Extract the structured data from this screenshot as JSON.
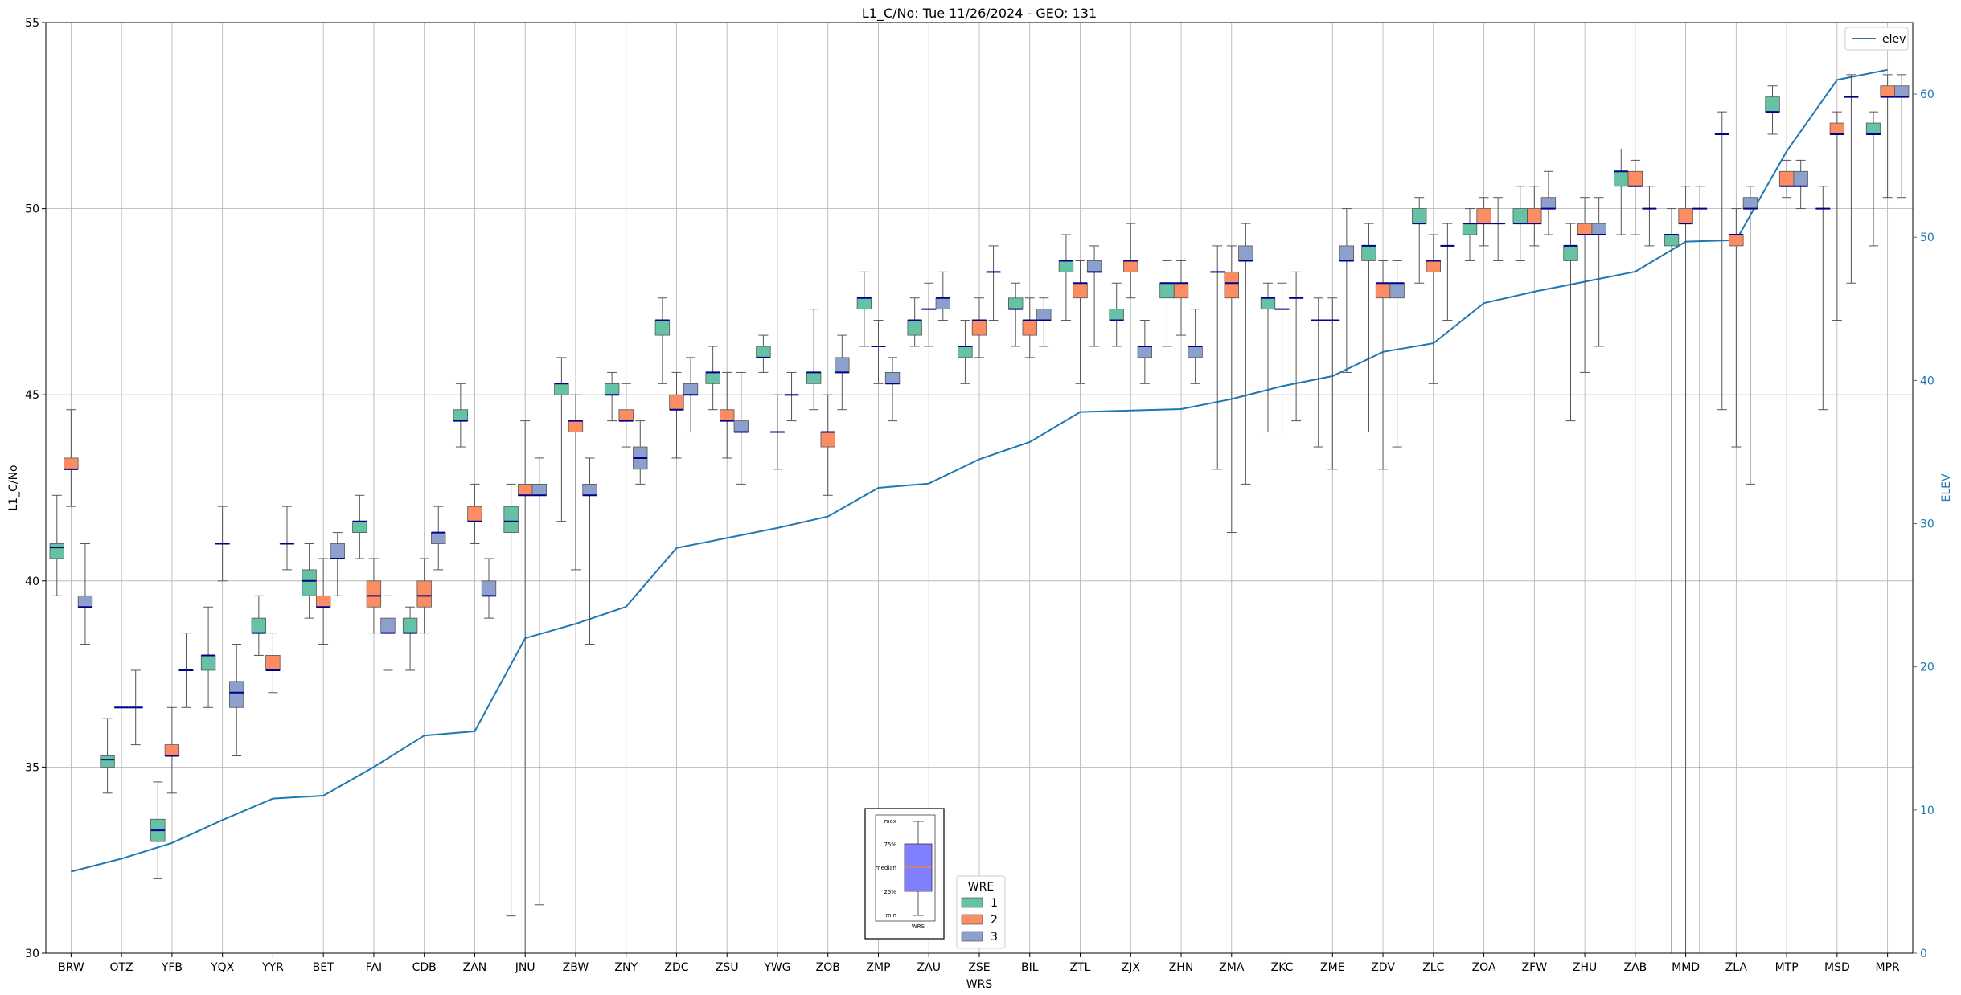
{
  "chart_data": {
    "type": "box",
    "title": "L1_C/No: Tue 11/26/2024 - GEO: 131",
    "xlabel": "WRS",
    "ylabel": "L1_C/No",
    "y2label": "ELEV",
    "ylim": [
      30,
      55
    ],
    "y2lim": [
      0,
      65
    ],
    "yticks": [
      30,
      35,
      40,
      45,
      50,
      55
    ],
    "y2ticks": [
      0,
      10,
      20,
      30,
      40,
      50,
      60
    ],
    "grid": true,
    "categories": [
      "BRW",
      "OTZ",
      "YFB",
      "YQX",
      "YYR",
      "BET",
      "FAI",
      "CDB",
      "ZAN",
      "JNU",
      "ZBW",
      "ZNY",
      "ZDC",
      "ZSU",
      "YWG",
      "ZOB",
      "ZMP",
      "ZAU",
      "ZSE",
      "BIL",
      "ZTL",
      "ZJX",
      "ZHN",
      "ZMA",
      "ZKC",
      "ZME",
      "ZDV",
      "ZLC",
      "ZOA",
      "ZFW",
      "ZHU",
      "ZAB",
      "MMD",
      "ZLA",
      "MTP",
      "MSD",
      "MPR"
    ],
    "wre_colors": {
      "1": "#66c2a5",
      "2": "#fc8d62",
      "3": "#8da0cb"
    },
    "median_color": "#00008b",
    "whisker_color": "#555555",
    "boxes": [
      {
        "x": "BRW",
        "wre": 1,
        "min": 39.6,
        "q1": 40.6,
        "median": 40.9,
        "q3": 41.0,
        "max": 42.3
      },
      {
        "x": "BRW",
        "wre": 2,
        "min": 42.0,
        "q1": 43.0,
        "median": 43.0,
        "q3": 43.3,
        "max": 44.6
      },
      {
        "x": "BRW",
        "wre": 3,
        "min": 38.3,
        "q1": 39.3,
        "median": 39.3,
        "q3": 39.6,
        "max": 41.0
      },
      {
        "x": "OTZ",
        "wre": 1,
        "min": 34.3,
        "q1": 35.0,
        "median": 35.2,
        "q3": 35.3,
        "max": 36.3
      },
      {
        "x": "OTZ",
        "wre": 2,
        "min": 36.6,
        "q1": 36.6,
        "median": 36.6,
        "q3": 36.6,
        "max": 36.6
      },
      {
        "x": "OTZ",
        "wre": 3,
        "min": 35.6,
        "q1": 36.6,
        "median": 36.6,
        "q3": 36.6,
        "max": 37.6
      },
      {
        "x": "YFB",
        "wre": 1,
        "min": 32.0,
        "q1": 33.0,
        "median": 33.3,
        "q3": 33.6,
        "max": 34.6
      },
      {
        "x": "YFB",
        "wre": 2,
        "min": 34.3,
        "q1": 35.3,
        "median": 35.3,
        "q3": 35.6,
        "max": 36.6
      },
      {
        "x": "YFB",
        "wre": 3,
        "min": 36.6,
        "q1": 37.6,
        "median": 37.6,
        "q3": 37.6,
        "max": 38.6
      },
      {
        "x": "YQX",
        "wre": 1,
        "min": 36.6,
        "q1": 37.6,
        "median": 38.0,
        "q3": 38.0,
        "max": 39.3
      },
      {
        "x": "YQX",
        "wre": 2,
        "min": 40.0,
        "q1": 41.0,
        "median": 41.0,
        "q3": 41.0,
        "max": 42.0
      },
      {
        "x": "YQX",
        "wre": 3,
        "min": 35.3,
        "q1": 36.6,
        "median": 37.0,
        "q3": 37.3,
        "max": 38.3
      },
      {
        "x": "YYR",
        "wre": 1,
        "min": 38.0,
        "q1": 38.6,
        "median": 38.6,
        "q3": 39.0,
        "max": 39.6
      },
      {
        "x": "YYR",
        "wre": 2,
        "min": 37.0,
        "q1": 37.6,
        "median": 37.6,
        "q3": 38.0,
        "max": 38.6
      },
      {
        "x": "YYR",
        "wre": 3,
        "min": 40.3,
        "q1": 41.0,
        "median": 41.0,
        "q3": 41.0,
        "max": 42.0
      },
      {
        "x": "BET",
        "wre": 1,
        "min": 39.0,
        "q1": 39.6,
        "median": 40.0,
        "q3": 40.3,
        "max": 41.0
      },
      {
        "x": "BET",
        "wre": 2,
        "min": 38.3,
        "q1": 39.3,
        "median": 39.3,
        "q3": 39.6,
        "max": 40.6
      },
      {
        "x": "BET",
        "wre": 3,
        "min": 39.6,
        "q1": 40.6,
        "median": 40.6,
        "q3": 41.0,
        "max": 41.3
      },
      {
        "x": "FAI",
        "wre": 1,
        "min": 40.6,
        "q1": 41.3,
        "median": 41.6,
        "q3": 41.6,
        "max": 42.3
      },
      {
        "x": "FAI",
        "wre": 2,
        "min": 38.6,
        "q1": 39.3,
        "median": 39.6,
        "q3": 40.0,
        "max": 40.6
      },
      {
        "x": "FAI",
        "wre": 3,
        "min": 37.6,
        "q1": 38.6,
        "median": 38.6,
        "q3": 39.0,
        "max": 39.6
      },
      {
        "x": "CDB",
        "wre": 1,
        "min": 37.6,
        "q1": 38.6,
        "median": 38.6,
        "q3": 39.0,
        "max": 39.3
      },
      {
        "x": "CDB",
        "wre": 2,
        "min": 38.6,
        "q1": 39.3,
        "median": 39.6,
        "q3": 40.0,
        "max": 40.6
      },
      {
        "x": "CDB",
        "wre": 3,
        "min": 40.3,
        "q1": 41.0,
        "median": 41.3,
        "q3": 41.3,
        "max": 42.0
      },
      {
        "x": "ZAN",
        "wre": 1,
        "min": 43.6,
        "q1": 44.3,
        "median": 44.3,
        "q3": 44.6,
        "max": 45.3
      },
      {
        "x": "ZAN",
        "wre": 2,
        "min": 41.0,
        "q1": 41.6,
        "median": 41.6,
        "q3": 42.0,
        "max": 42.6
      },
      {
        "x": "ZAN",
        "wre": 3,
        "min": 39.0,
        "q1": 39.6,
        "median": 39.6,
        "q3": 40.0,
        "max": 40.6
      },
      {
        "x": "JNU",
        "wre": 1,
        "min": 31.0,
        "q1": 41.3,
        "median": 41.6,
        "q3": 42.0,
        "max": 42.6
      },
      {
        "x": "JNU",
        "wre": 2,
        "min": 30.0,
        "q1": 42.3,
        "median": 42.3,
        "q3": 42.6,
        "max": 44.3
      },
      {
        "x": "JNU",
        "wre": 3,
        "min": 31.3,
        "q1": 42.3,
        "median": 42.3,
        "q3": 42.6,
        "max": 43.3
      },
      {
        "x": "ZBW",
        "wre": 1,
        "min": 41.6,
        "q1": 45.0,
        "median": 45.3,
        "q3": 45.3,
        "max": 46.0
      },
      {
        "x": "ZBW",
        "wre": 2,
        "min": 40.3,
        "q1": 44.0,
        "median": 44.3,
        "q3": 44.3,
        "max": 45.0
      },
      {
        "x": "ZBW",
        "wre": 3,
        "min": 38.3,
        "q1": 42.3,
        "median": 42.3,
        "q3": 42.6,
        "max": 43.3
      },
      {
        "x": "ZNY",
        "wre": 1,
        "min": 44.3,
        "q1": 45.0,
        "median": 45.0,
        "q3": 45.3,
        "max": 45.6
      },
      {
        "x": "ZNY",
        "wre": 2,
        "min": 43.6,
        "q1": 44.3,
        "median": 44.3,
        "q3": 44.6,
        "max": 45.3
      },
      {
        "x": "ZNY",
        "wre": 3,
        "min": 42.6,
        "q1": 43.0,
        "median": 43.3,
        "q3": 43.6,
        "max": 44.3
      },
      {
        "x": "ZDC",
        "wre": 1,
        "min": 45.3,
        "q1": 46.6,
        "median": 47.0,
        "q3": 47.0,
        "max": 47.6
      },
      {
        "x": "ZDC",
        "wre": 2,
        "min": 43.3,
        "q1": 44.6,
        "median": 44.6,
        "q3": 45.0,
        "max": 45.6
      },
      {
        "x": "ZDC",
        "wre": 3,
        "min": 44.0,
        "q1": 45.0,
        "median": 45.0,
        "q3": 45.3,
        "max": 46.0
      },
      {
        "x": "ZSU",
        "wre": 1,
        "min": 44.6,
        "q1": 45.3,
        "median": 45.6,
        "q3": 45.6,
        "max": 46.3
      },
      {
        "x": "ZSU",
        "wre": 2,
        "min": 43.3,
        "q1": 44.3,
        "median": 44.3,
        "q3": 44.6,
        "max": 45.6
      },
      {
        "x": "ZSU",
        "wre": 3,
        "min": 42.6,
        "q1": 44.0,
        "median": 44.0,
        "q3": 44.3,
        "max": 45.6
      },
      {
        "x": "YWG",
        "wre": 1,
        "min": 45.6,
        "q1": 46.0,
        "median": 46.0,
        "q3": 46.3,
        "max": 46.6
      },
      {
        "x": "YWG",
        "wre": 2,
        "min": 43.0,
        "q1": 44.0,
        "median": 44.0,
        "q3": 44.0,
        "max": 45.0
      },
      {
        "x": "YWG",
        "wre": 3,
        "min": 44.3,
        "q1": 45.0,
        "median": 45.0,
        "q3": 45.0,
        "max": 45.6
      },
      {
        "x": "ZOB",
        "wre": 1,
        "min": 44.6,
        "q1": 45.3,
        "median": 45.6,
        "q3": 45.6,
        "max": 47.3
      },
      {
        "x": "ZOB",
        "wre": 2,
        "min": 42.3,
        "q1": 43.6,
        "median": 44.0,
        "q3": 44.0,
        "max": 45.0
      },
      {
        "x": "ZOB",
        "wre": 3,
        "min": 44.6,
        "q1": 45.6,
        "median": 45.6,
        "q3": 46.0,
        "max": 46.6
      },
      {
        "x": "ZMP",
        "wre": 1,
        "min": 46.3,
        "q1": 47.3,
        "median": 47.6,
        "q3": 47.6,
        "max": 48.3
      },
      {
        "x": "ZMP",
        "wre": 2,
        "min": 45.3,
        "q1": 46.3,
        "median": 46.3,
        "q3": 46.3,
        "max": 47.0
      },
      {
        "x": "ZMP",
        "wre": 3,
        "min": 44.3,
        "q1": 45.3,
        "median": 45.3,
        "q3": 45.6,
        "max": 46.0
      },
      {
        "x": "ZAU",
        "wre": 1,
        "min": 46.3,
        "q1": 46.6,
        "median": 47.0,
        "q3": 47.0,
        "max": 47.6
      },
      {
        "x": "ZAU",
        "wre": 2,
        "min": 46.3,
        "q1": 47.3,
        "median": 47.3,
        "q3": 47.3,
        "max": 48.0
      },
      {
        "x": "ZAU",
        "wre": 3,
        "min": 47.0,
        "q1": 47.3,
        "median": 47.6,
        "q3": 47.6,
        "max": 48.3
      },
      {
        "x": "ZSE",
        "wre": 1,
        "min": 45.3,
        "q1": 46.0,
        "median": 46.3,
        "q3": 46.3,
        "max": 47.0
      },
      {
        "x": "ZSE",
        "wre": 2,
        "min": 46.0,
        "q1": 46.6,
        "median": 47.0,
        "q3": 47.0,
        "max": 47.6
      },
      {
        "x": "ZSE",
        "wre": 3,
        "min": 47.0,
        "q1": 48.3,
        "median": 48.3,
        "q3": 48.3,
        "max": 49.0
      },
      {
        "x": "BIL",
        "wre": 1,
        "min": 46.3,
        "q1": 47.3,
        "median": 47.3,
        "q3": 47.6,
        "max": 48.0
      },
      {
        "x": "BIL",
        "wre": 2,
        "min": 46.0,
        "q1": 46.6,
        "median": 47.0,
        "q3": 47.0,
        "max": 47.6
      },
      {
        "x": "BIL",
        "wre": 3,
        "min": 46.3,
        "q1": 47.0,
        "median": 47.0,
        "q3": 47.3,
        "max": 47.6
      },
      {
        "x": "ZTL",
        "wre": 1,
        "min": 47.0,
        "q1": 48.3,
        "median": 48.6,
        "q3": 48.6,
        "max": 49.3
      },
      {
        "x": "ZTL",
        "wre": 2,
        "min": 45.3,
        "q1": 47.6,
        "median": 48.0,
        "q3": 48.0,
        "max": 48.6
      },
      {
        "x": "ZTL",
        "wre": 3,
        "min": 46.3,
        "q1": 48.3,
        "median": 48.3,
        "q3": 48.6,
        "max": 49.0
      },
      {
        "x": "ZJX",
        "wre": 1,
        "min": 46.3,
        "q1": 47.0,
        "median": 47.0,
        "q3": 47.3,
        "max": 48.0
      },
      {
        "x": "ZJX",
        "wre": 2,
        "min": 47.6,
        "q1": 48.3,
        "median": 48.6,
        "q3": 48.6,
        "max": 49.6
      },
      {
        "x": "ZJX",
        "wre": 3,
        "min": 45.3,
        "q1": 46.0,
        "median": 46.3,
        "q3": 46.3,
        "max": 47.0
      },
      {
        "x": "ZHN",
        "wre": 1,
        "min": 46.3,
        "q1": 47.6,
        "median": 48.0,
        "q3": 48.0,
        "max": 48.6
      },
      {
        "x": "ZHN",
        "wre": 2,
        "min": 46.6,
        "q1": 47.6,
        "median": 48.0,
        "q3": 48.0,
        "max": 48.6
      },
      {
        "x": "ZHN",
        "wre": 3,
        "min": 45.3,
        "q1": 46.0,
        "median": 46.3,
        "q3": 46.3,
        "max": 47.3
      },
      {
        "x": "ZMA",
        "wre": 1,
        "min": 43.0,
        "q1": 48.3,
        "median": 48.3,
        "q3": 48.3,
        "max": 49.0
      },
      {
        "x": "ZMA",
        "wre": 2,
        "min": 41.3,
        "q1": 47.6,
        "median": 48.0,
        "q3": 48.3,
        "max": 49.0
      },
      {
        "x": "ZMA",
        "wre": 3,
        "min": 42.6,
        "q1": 48.6,
        "median": 48.6,
        "q3": 49.0,
        "max": 49.6
      },
      {
        "x": "ZKC",
        "wre": 1,
        "min": 44.0,
        "q1": 47.3,
        "median": 47.6,
        "q3": 47.6,
        "max": 48.0
      },
      {
        "x": "ZKC",
        "wre": 2,
        "min": 44.0,
        "q1": 47.3,
        "median": 47.3,
        "q3": 47.3,
        "max": 48.0
      },
      {
        "x": "ZKC",
        "wre": 3,
        "min": 44.3,
        "q1": 47.6,
        "median": 47.6,
        "q3": 47.6,
        "max": 48.3
      },
      {
        "x": "ZME",
        "wre": 1,
        "min": 43.6,
        "q1": 47.0,
        "median": 47.0,
        "q3": 47.0,
        "max": 47.6
      },
      {
        "x": "ZME",
        "wre": 2,
        "min": 43.0,
        "q1": 47.0,
        "median": 47.0,
        "q3": 47.0,
        "max": 47.6
      },
      {
        "x": "ZME",
        "wre": 3,
        "min": 45.6,
        "q1": 48.6,
        "median": 48.6,
        "q3": 49.0,
        "max": 50.0
      },
      {
        "x": "ZDV",
        "wre": 1,
        "min": 44.0,
        "q1": 48.6,
        "median": 49.0,
        "q3": 49.0,
        "max": 49.6
      },
      {
        "x": "ZDV",
        "wre": 2,
        "min": 43.0,
        "q1": 47.6,
        "median": 48.0,
        "q3": 48.0,
        "max": 48.6
      },
      {
        "x": "ZDV",
        "wre": 3,
        "min": 43.6,
        "q1": 47.6,
        "median": 48.0,
        "q3": 48.0,
        "max": 48.6
      },
      {
        "x": "ZLC",
        "wre": 1,
        "min": 48.0,
        "q1": 49.6,
        "median": 49.6,
        "q3": 50.0,
        "max": 50.3
      },
      {
        "x": "ZLC",
        "wre": 2,
        "min": 45.3,
        "q1": 48.3,
        "median": 48.6,
        "q3": 48.6,
        "max": 49.3
      },
      {
        "x": "ZLC",
        "wre": 3,
        "min": 47.0,
        "q1": 49.0,
        "median": 49.0,
        "q3": 49.0,
        "max": 49.6
      },
      {
        "x": "ZOA",
        "wre": 1,
        "min": 48.6,
        "q1": 49.3,
        "median": 49.6,
        "q3": 49.6,
        "max": 50.0
      },
      {
        "x": "ZOA",
        "wre": 2,
        "min": 49.0,
        "q1": 49.6,
        "median": 49.6,
        "q3": 50.0,
        "max": 50.3
      },
      {
        "x": "ZOA",
        "wre": 3,
        "min": 48.6,
        "q1": 49.6,
        "median": 49.6,
        "q3": 49.6,
        "max": 50.3
      },
      {
        "x": "ZFW",
        "wre": 1,
        "min": 48.6,
        "q1": 49.6,
        "median": 49.6,
        "q3": 50.0,
        "max": 50.6
      },
      {
        "x": "ZFW",
        "wre": 2,
        "min": 49.0,
        "q1": 49.6,
        "median": 49.6,
        "q3": 50.0,
        "max": 50.6
      },
      {
        "x": "ZFW",
        "wre": 3,
        "min": 49.3,
        "q1": 50.0,
        "median": 50.0,
        "q3": 50.3,
        "max": 51.0
      },
      {
        "x": "ZHU",
        "wre": 1,
        "min": 44.3,
        "q1": 48.6,
        "median": 49.0,
        "q3": 49.0,
        "max": 49.6
      },
      {
        "x": "ZHU",
        "wre": 2,
        "min": 45.6,
        "q1": 49.3,
        "median": 49.3,
        "q3": 49.6,
        "max": 50.3
      },
      {
        "x": "ZHU",
        "wre": 3,
        "min": 46.3,
        "q1": 49.3,
        "median": 49.3,
        "q3": 49.6,
        "max": 50.3
      },
      {
        "x": "ZAB",
        "wre": 1,
        "min": 49.3,
        "q1": 50.6,
        "median": 51.0,
        "q3": 51.0,
        "max": 51.6
      },
      {
        "x": "ZAB",
        "wre": 2,
        "min": 49.3,
        "q1": 50.6,
        "median": 50.6,
        "q3": 51.0,
        "max": 51.3
      },
      {
        "x": "ZAB",
        "wre": 3,
        "min": 49.0,
        "q1": 50.0,
        "median": 50.0,
        "q3": 50.0,
        "max": 50.6
      },
      {
        "x": "MMD",
        "wre": 1,
        "min": 30.0,
        "q1": 49.0,
        "median": 49.3,
        "q3": 49.3,
        "max": 50.0
      },
      {
        "x": "MMD",
        "wre": 2,
        "min": 30.0,
        "q1": 49.6,
        "median": 49.6,
        "q3": 50.0,
        "max": 50.6
      },
      {
        "x": "MMD",
        "wre": 3,
        "min": 30.0,
        "q1": 50.0,
        "median": 50.0,
        "q3": 50.0,
        "max": 50.6
      },
      {
        "x": "ZLA",
        "wre": 1,
        "min": 44.6,
        "q1": 52.0,
        "median": 52.0,
        "q3": 52.0,
        "max": 52.6
      },
      {
        "x": "ZLA",
        "wre": 2,
        "min": 43.6,
        "q1": 49.0,
        "median": 49.3,
        "q3": 49.3,
        "max": 50.0
      },
      {
        "x": "ZLA",
        "wre": 3,
        "min": 42.6,
        "q1": 50.0,
        "median": 50.0,
        "q3": 50.3,
        "max": 50.6
      },
      {
        "x": "MTP",
        "wre": 1,
        "min": 52.0,
        "q1": 52.6,
        "median": 52.6,
        "q3": 53.0,
        "max": 53.3
      },
      {
        "x": "MTP",
        "wre": 2,
        "min": 50.3,
        "q1": 50.6,
        "median": 50.6,
        "q3": 51.0,
        "max": 51.3
      },
      {
        "x": "MTP",
        "wre": 3,
        "min": 50.0,
        "q1": 50.6,
        "median": 50.6,
        "q3": 51.0,
        "max": 51.3
      },
      {
        "x": "MSD",
        "wre": 1,
        "min": 44.6,
        "q1": 50.0,
        "median": 50.0,
        "q3": 50.0,
        "max": 50.6
      },
      {
        "x": "MSD",
        "wre": 2,
        "min": 47.0,
        "q1": 52.0,
        "median": 52.0,
        "q3": 52.3,
        "max": 52.6
      },
      {
        "x": "MSD",
        "wre": 3,
        "min": 48.0,
        "q1": 53.0,
        "median": 53.0,
        "q3": 53.0,
        "max": 53.6
      },
      {
        "x": "MPR",
        "wre": 1,
        "min": 49.0,
        "q1": 52.0,
        "median": 52.0,
        "q3": 52.3,
        "max": 52.6
      },
      {
        "x": "MPR",
        "wre": 2,
        "min": 50.3,
        "q1": 53.0,
        "median": 53.0,
        "q3": 53.3,
        "max": 53.6
      },
      {
        "x": "MPR",
        "wre": 3,
        "min": 50.3,
        "q1": 53.0,
        "median": 53.0,
        "q3": 53.3,
        "max": 53.6
      }
    ],
    "elev_series": {
      "name": "elev",
      "color": "#1f77b4",
      "values": [
        5.7,
        6.6,
        7.7,
        9.3,
        10.8,
        11.0,
        13.0,
        15.2,
        15.5,
        22.0,
        23.0,
        24.2,
        28.3,
        29.0,
        29.7,
        30.5,
        32.5,
        32.8,
        34.5,
        35.7,
        37.8,
        37.9,
        38.0,
        38.7,
        39.6,
        40.3,
        42.0,
        42.6,
        45.4,
        46.2,
        46.9,
        47.6,
        49.7,
        49.8,
        56.0,
        61.0,
        61.7
      ]
    },
    "legend": {
      "elev_label": "elev",
      "elev_position": "top-right",
      "wre_title": "WRE",
      "wre_items": [
        "1",
        "2",
        "3"
      ],
      "wre_position": "lower-center"
    },
    "key_inset": {
      "labels": [
        "max",
        "75%",
        "median",
        "25%",
        "min"
      ],
      "xlabel": "WRS",
      "box_color": "#8080ff",
      "median_color": "#ff8c00"
    }
  }
}
